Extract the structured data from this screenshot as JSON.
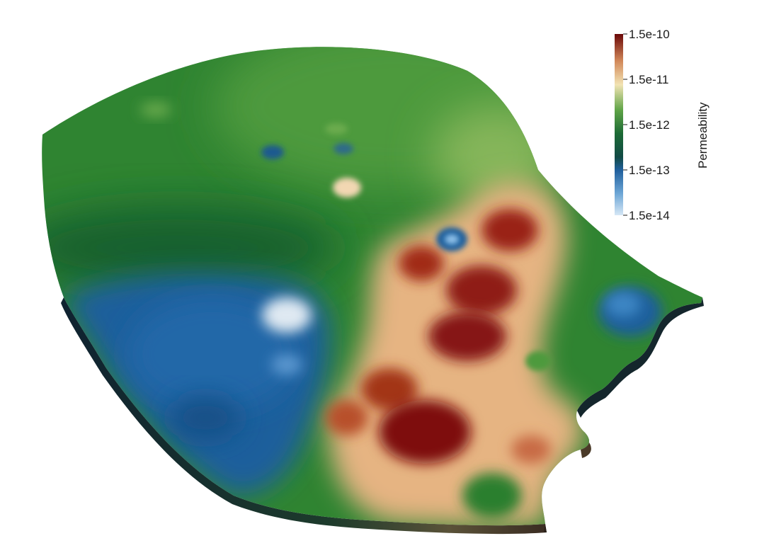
{
  "colorbar": {
    "title": "Permeability",
    "ticks": [
      "1.5e-10",
      "1.5e-11",
      "1.5e-12",
      "1.5e-13",
      "1.5e-14"
    ],
    "scale": "log",
    "range": [
      1.5e-14,
      1.5e-10
    ],
    "colormap": [
      "#0b2545",
      "#1f5a9c",
      "#3e86c4",
      "#1c6a35",
      "#2f8a30",
      "#8fbf5a",
      "#f2e3b3",
      "#e7b078",
      "#c4633a",
      "#7a0a0a"
    ]
  },
  "colors": {
    "high": "#8a1010",
    "upper_mid": "#e9bd87",
    "mid": "#2f8431",
    "low": "#1f5f9c",
    "min": "#f1f1ef",
    "side_wall": "#12202e"
  }
}
